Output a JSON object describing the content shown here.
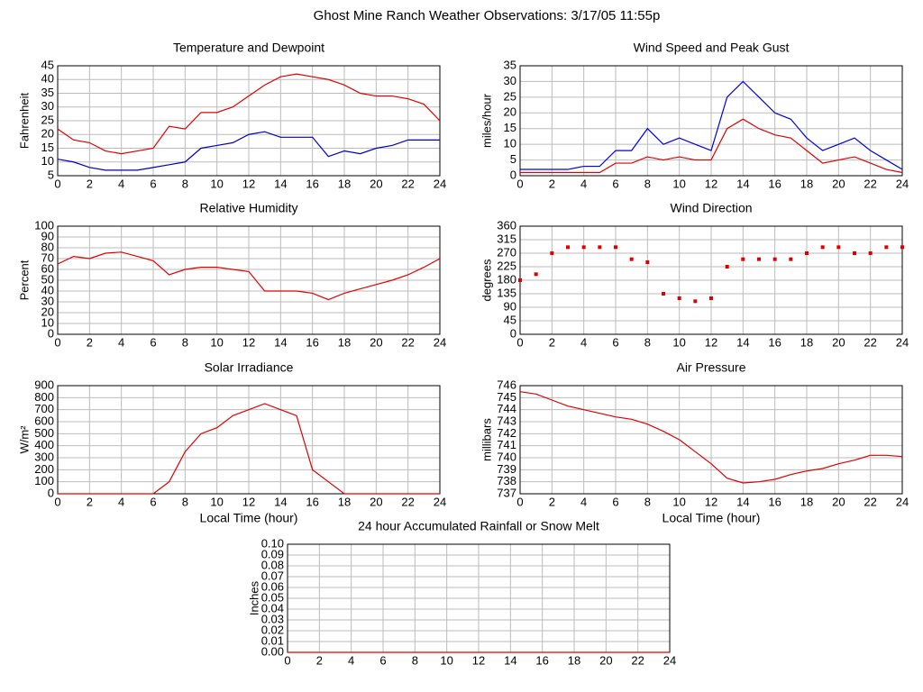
{
  "page_title": "Ghost Mine Ranch Weather Observations: 3/17/05 11:55p",
  "chart_data": [
    {
      "type": "line",
      "title": "Temperature and Dewpoint",
      "ylabel": "Fahrenheit",
      "x": [
        0,
        1,
        2,
        3,
        4,
        5,
        6,
        7,
        8,
        9,
        10,
        11,
        12,
        13,
        14,
        15,
        16,
        17,
        18,
        19,
        20,
        21,
        22,
        23,
        24
      ],
      "series": [
        {
          "color": "#e00000",
          "values": [
            22,
            18,
            17,
            14,
            13,
            14,
            15,
            23,
            22,
            28,
            28,
            30,
            34,
            38,
            41,
            42,
            41,
            40,
            38,
            35,
            34,
            34,
            33,
            31,
            25
          ]
        },
        {
          "color": "#0000c0",
          "values": [
            11,
            10,
            8,
            7,
            7,
            7,
            8,
            9,
            10,
            15,
            16,
            17,
            20,
            21,
            19,
            19,
            19,
            12,
            14,
            13,
            15,
            16,
            18,
            18,
            18
          ]
        }
      ],
      "xlim": [
        0,
        24
      ],
      "ylim": [
        5,
        45
      ],
      "xticks": [
        0,
        2,
        4,
        6,
        8,
        10,
        12,
        14,
        16,
        18,
        20,
        22,
        24
      ],
      "yticks": [
        5,
        10,
        15,
        20,
        25,
        30,
        35,
        40,
        45
      ],
      "grid": true
    },
    {
      "type": "line",
      "title": "Wind Speed and Peak Gust",
      "ylabel": "miles/hour",
      "x": [
        0,
        1,
        2,
        3,
        4,
        5,
        6,
        7,
        8,
        9,
        10,
        11,
        12,
        13,
        14,
        15,
        16,
        17,
        18,
        19,
        20,
        21,
        22,
        23,
        24
      ],
      "series": [
        {
          "color": "#0000e0",
          "values": [
            2,
            2,
            2,
            2,
            3,
            3,
            8,
            8,
            15,
            10,
            12,
            10,
            8,
            25,
            30,
            25,
            20,
            18,
            12,
            8,
            10,
            12,
            8,
            5,
            2
          ]
        },
        {
          "color": "#e00000",
          "values": [
            1,
            1,
            1,
            1,
            1,
            1,
            4,
            4,
            6,
            5,
            6,
            5,
            5,
            15,
            18,
            15,
            13,
            12,
            8,
            4,
            5,
            6,
            4,
            2,
            1
          ]
        }
      ],
      "xlim": [
        0,
        24
      ],
      "ylim": [
        0,
        35
      ],
      "xticks": [
        0,
        2,
        4,
        6,
        8,
        10,
        12,
        14,
        16,
        18,
        20,
        22,
        24
      ],
      "yticks": [
        0,
        5,
        10,
        15,
        20,
        25,
        30,
        35
      ],
      "grid": true
    },
    {
      "type": "line",
      "title": "Relative Humidity",
      "ylabel": "Percent",
      "x": [
        0,
        1,
        2,
        3,
        4,
        5,
        6,
        7,
        8,
        9,
        10,
        11,
        12,
        13,
        14,
        15,
        16,
        17,
        18,
        19,
        20,
        21,
        22,
        23,
        24
      ],
      "series": [
        {
          "color": "#e00000",
          "values": [
            65,
            72,
            70,
            75,
            76,
            72,
            68,
            55,
            60,
            62,
            62,
            60,
            58,
            40,
            40,
            40,
            38,
            32,
            38,
            42,
            46,
            50,
            55,
            62,
            70
          ]
        }
      ],
      "xlim": [
        0,
        24
      ],
      "ylim": [
        0,
        100
      ],
      "xticks": [
        0,
        2,
        4,
        6,
        8,
        10,
        12,
        14,
        16,
        18,
        20,
        22,
        24
      ],
      "yticks": [
        0,
        10,
        20,
        30,
        40,
        50,
        60,
        70,
        80,
        90,
        100
      ],
      "grid": true
    },
    {
      "type": "scatter",
      "title": "Wind Direction",
      "ylabel": "degrees",
      "x": [
        0,
        1,
        2,
        3,
        4,
        5,
        6,
        7,
        8,
        9,
        10,
        11,
        12,
        13,
        14,
        15,
        16,
        17,
        18,
        19,
        20,
        21,
        22,
        23,
        24
      ],
      "series": [
        {
          "color": "#e00000",
          "values": [
            180,
            200,
            270,
            290,
            290,
            290,
            290,
            250,
            240,
            135,
            120,
            110,
            120,
            225,
            250,
            250,
            250,
            250,
            270,
            290,
            290,
            270,
            270,
            290,
            290
          ]
        }
      ],
      "xlim": [
        0,
        24
      ],
      "ylim": [
        0,
        360
      ],
      "xticks": [
        0,
        2,
        4,
        6,
        8,
        10,
        12,
        14,
        16,
        18,
        20,
        22,
        24
      ],
      "yticks": [
        0,
        45,
        90,
        135,
        180,
        225,
        270,
        315,
        360
      ],
      "grid": true
    },
    {
      "type": "line",
      "title": "Solar Irradiance",
      "ylabel": "W/m²",
      "xlabel": "Local Time (hour)",
      "x": [
        0,
        1,
        2,
        3,
        4,
        5,
        6,
        7,
        8,
        9,
        10,
        11,
        12,
        13,
        14,
        15,
        16,
        17,
        18,
        19,
        20,
        21,
        22,
        23,
        24
      ],
      "series": [
        {
          "color": "#e00000",
          "values": [
            0,
            0,
            0,
            0,
            0,
            0,
            0,
            100,
            350,
            500,
            550,
            650,
            700,
            750,
            700,
            650,
            200,
            100,
            0,
            0,
            0,
            0,
            0,
            0,
            0
          ]
        }
      ],
      "xlim": [
        0,
        24
      ],
      "ylim": [
        0,
        900
      ],
      "xticks": [
        0,
        2,
        4,
        6,
        8,
        10,
        12,
        14,
        16,
        18,
        20,
        22,
        24
      ],
      "yticks": [
        0,
        100,
        200,
        300,
        400,
        500,
        600,
        700,
        800,
        900
      ],
      "grid": true
    },
    {
      "type": "line",
      "title": "Air Pressure",
      "ylabel": "millibars",
      "xlabel": "Local Time (hour)",
      "x": [
        0,
        1,
        2,
        3,
        4,
        5,
        6,
        7,
        8,
        9,
        10,
        11,
        12,
        13,
        14,
        15,
        16,
        17,
        18,
        19,
        20,
        21,
        22,
        23,
        24
      ],
      "series": [
        {
          "color": "#e00000",
          "values": [
            745.5,
            745.3,
            744.8,
            744.3,
            744.0,
            743.7,
            743.4,
            743.2,
            742.8,
            742.2,
            741.5,
            740.5,
            739.5,
            738.3,
            737.9,
            738.0,
            738.2,
            738.6,
            738.9,
            739.1,
            739.5,
            739.8,
            740.2,
            740.2,
            740.1
          ]
        }
      ],
      "xlim": [
        0,
        24
      ],
      "ylim": [
        737,
        746
      ],
      "xticks": [
        0,
        2,
        4,
        6,
        8,
        10,
        12,
        14,
        16,
        18,
        20,
        22,
        24
      ],
      "yticks": [
        737,
        738,
        739,
        740,
        741,
        742,
        743,
        744,
        745,
        746
      ],
      "grid": true
    },
    {
      "type": "line",
      "title": "24 hour Accumulated Rainfall or Snow Melt",
      "ylabel": "Inches",
      "x": [
        0,
        24
      ],
      "series": [
        {
          "color": "#e00000",
          "values": [
            0,
            0
          ]
        }
      ],
      "xlim": [
        0,
        24
      ],
      "ylim": [
        0,
        0.1
      ],
      "xticks": [
        0,
        2,
        4,
        6,
        8,
        10,
        12,
        14,
        16,
        18,
        20,
        22,
        24
      ],
      "yticks": [
        {
          "value": 0,
          "label": "0.00"
        },
        {
          "value": 0.01,
          "label": "0.01"
        },
        {
          "value": 0.02,
          "label": "0.02"
        },
        {
          "value": 0.03,
          "label": "0.03"
        },
        {
          "value": 0.04,
          "label": "0.04"
        },
        {
          "value": 0.05,
          "label": "0.05"
        },
        {
          "value": 0.06,
          "label": "0.06"
        },
        {
          "value": 0.07,
          "label": "0.07"
        },
        {
          "value": 0.08,
          "label": "0.08"
        },
        {
          "value": 0.09,
          "label": "0.09"
        },
        {
          "value": 0.1,
          "label": "0.10"
        }
      ],
      "grid": true
    }
  ]
}
